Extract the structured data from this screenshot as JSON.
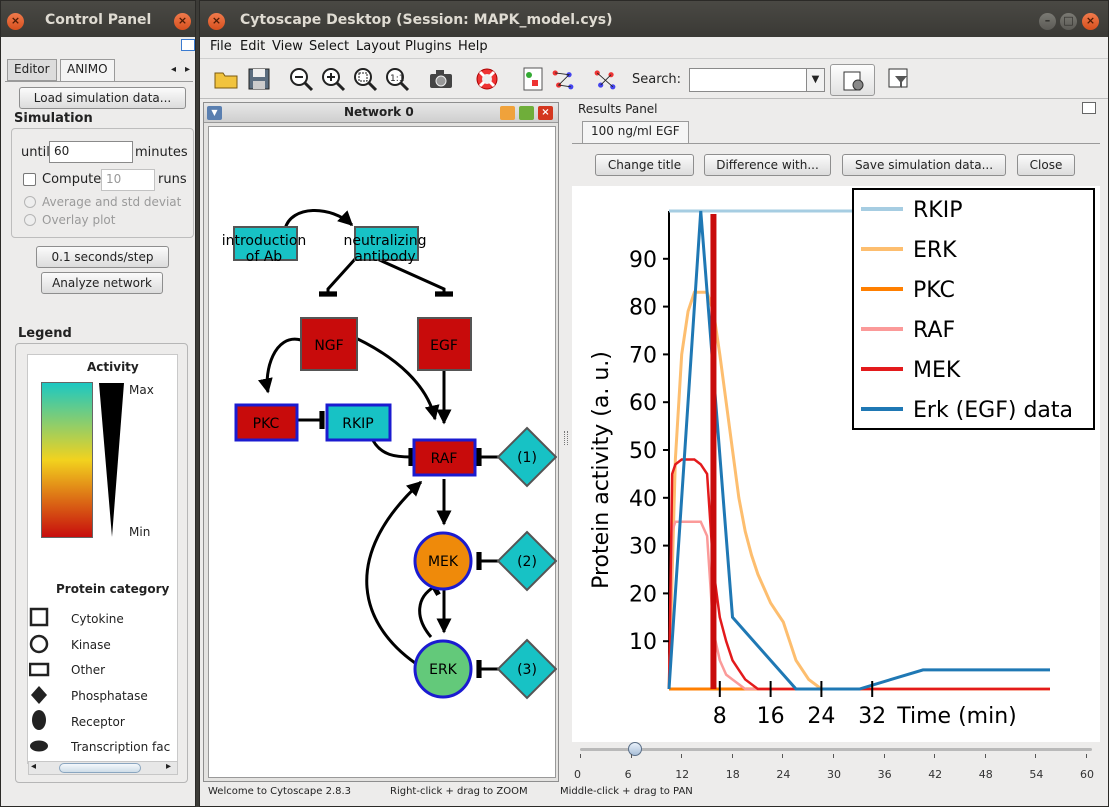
{
  "control_panel": {
    "title": "Control Panel",
    "tabs": [
      "Editor",
      "ANIMO"
    ],
    "load_button": "Load simulation data...",
    "simulation_heading": "Simulation",
    "until_label": "until",
    "until_value": "60",
    "minutes_label": "minutes",
    "compute_label": "Compute",
    "compute_value": "10",
    "runs_label": "runs",
    "average_label": "Average and std deviat",
    "overlay_label": "Overlay plot",
    "step_button": "0.1 seconds/step",
    "analyze_button": "Analyze network",
    "legend_heading": "Legend",
    "activity_label": "Activity",
    "max_label": "Max",
    "min_label": "Min",
    "protein_category_label": "Protein category",
    "categories": [
      "Cytokine",
      "Kinase",
      "Other",
      "Phosphatase",
      "Receptor",
      "Transcription fac"
    ],
    "colors": {
      "gradient_top": "#1cc8c2",
      "gradient_mid": "#f2d21e",
      "gradient_bottom": "#c70d0d"
    }
  },
  "main_window": {
    "title": "Cytoscape Desktop (Session: MAPK_model.cys)",
    "menu": [
      "File",
      "Edit",
      "View",
      "Select",
      "Layout",
      "Plugins",
      "Help"
    ],
    "search_label": "Search:",
    "search_value": ""
  },
  "network": {
    "title": "Network 0",
    "nodes": {
      "intro": "introduction\nof Ab",
      "neutral": "neutralizing\nantibody",
      "ngf": "NGF",
      "egf": "EGF",
      "pkc": "PKC",
      "rkip": "RKIP",
      "raf": "RAF",
      "mek": "MEK",
      "erk": "ERK",
      "d1": "(1)",
      "d2": "(2)",
      "d3": "(3)"
    },
    "colors": {
      "teal": "#17c2c5",
      "red": "#c80b0b",
      "orange": "#ef8a0a",
      "green": "#63c97a",
      "blue_border": "#1b1bd0"
    }
  },
  "results": {
    "panel_title": "Results Panel",
    "tab": "100 ng/ml EGF",
    "buttons": [
      "Change title",
      "Difference with...",
      "Save simulation data...",
      "Close"
    ]
  },
  "chart_data": {
    "type": "line",
    "title": "",
    "xlabel": "Time (min)",
    "ylabel": "Protein activity (a. u.)",
    "xlim": [
      0,
      60
    ],
    "ylim": [
      0,
      100
    ],
    "x_ticks": [
      8,
      16,
      24,
      32
    ],
    "y_ticks": [
      10,
      20,
      30,
      40,
      50,
      60,
      70,
      80,
      90
    ],
    "legend_position": "top-right",
    "cursor_x": 7,
    "series": [
      {
        "name": "RKIP",
        "color": "#a6cde2",
        "x": [
          0,
          60
        ],
        "y": [
          100,
          100
        ]
      },
      {
        "name": "ERK",
        "color": "#fdbe6f",
        "x": [
          0,
          1,
          2,
          3,
          4,
          5,
          6,
          7,
          8,
          9,
          10,
          11,
          12,
          13,
          14,
          15,
          16,
          17,
          18,
          19,
          20,
          22,
          24,
          30,
          60
        ],
        "y": [
          0,
          48,
          70,
          79,
          83,
          83,
          83,
          79,
          70,
          60,
          50,
          40,
          33,
          28,
          24,
          21,
          18,
          16,
          14,
          10,
          6,
          2,
          0,
          0,
          0
        ]
      },
      {
        "name": "PKC",
        "color": "#ff7f00",
        "x": [
          0,
          60
        ],
        "y": [
          0,
          0
        ]
      },
      {
        "name": "RAF",
        "color": "#fb9a99",
        "x": [
          0,
          0.5,
          1,
          2,
          3,
          4,
          5,
          6,
          6.5,
          7,
          8,
          9,
          10,
          12,
          60
        ],
        "y": [
          0,
          33,
          35,
          35,
          35,
          35,
          35,
          32,
          22,
          12,
          6,
          3,
          2,
          0,
          0
        ]
      },
      {
        "name": "MEK",
        "color": "#e31a1c",
        "x": [
          0,
          0.5,
          1,
          2,
          3,
          4,
          5,
          6,
          6.5,
          7,
          8,
          9,
          10,
          11,
          12,
          14,
          60
        ],
        "y": [
          0,
          45,
          47,
          48,
          48,
          48,
          47,
          45,
          35,
          25,
          15,
          10,
          6,
          4,
          2,
          0,
          0
        ]
      },
      {
        "name": "Erk (EGF) data",
        "color": "#1f78b4",
        "x": [
          0,
          5,
          10,
          20,
          30,
          40,
          60
        ],
        "y": [
          0,
          100,
          15,
          0,
          0,
          4,
          4
        ]
      }
    ]
  },
  "slider": {
    "value": 6.5,
    "ticks": [
      "0",
      "6",
      "12",
      "18",
      "24",
      "30",
      "36",
      "42",
      "48",
      "54",
      "60"
    ]
  },
  "status_bar": {
    "left": "Welcome to Cytoscape 2.8.3",
    "mid": "Right-click + drag to ZOOM",
    "right": "Middle-click + drag to PAN"
  }
}
